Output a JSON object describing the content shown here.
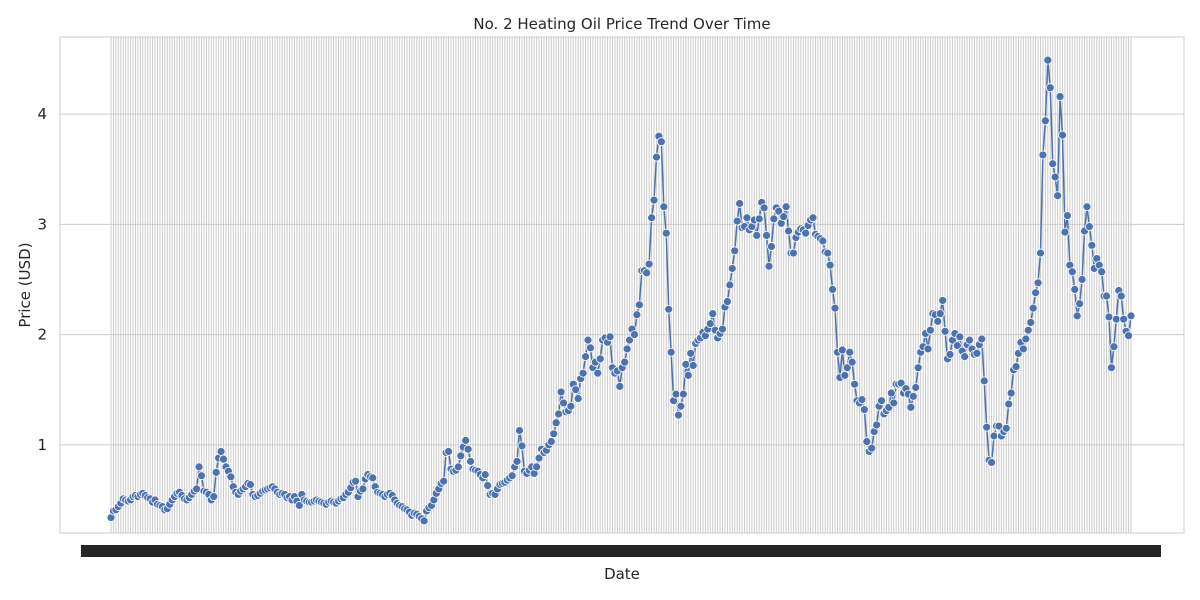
{
  "chart_data": {
    "type": "line",
    "title": "No. 2 Heating Oil Price Trend Over Time",
    "xlabel": "Date",
    "ylabel": "Price (USD)",
    "ylim": [
      0.2,
      4.7
    ],
    "yticks": [
      1,
      2,
      3,
      4
    ],
    "grid": true,
    "marker": "circle",
    "x_axis_note": "x-axis category labels are rendered overlapping and illegible",
    "series": [
      {
        "values": [
          0.34,
          0.4,
          0.41,
          0.44,
          0.47,
          0.51,
          0.5,
          0.49,
          0.5,
          0.53,
          0.54,
          0.53,
          0.55,
          0.56,
          0.54,
          0.52,
          0.51,
          0.48,
          0.5,
          0.46,
          0.45,
          0.44,
          0.41,
          0.42,
          0.46,
          0.5,
          0.53,
          0.56,
          0.57,
          0.54,
          0.51,
          0.5,
          0.52,
          0.55,
          0.58,
          0.6,
          0.8,
          0.72,
          0.58,
          0.57,
          0.55,
          0.5,
          0.53,
          0.75,
          0.88,
          0.94,
          0.87,
          0.8,
          0.76,
          0.71,
          0.62,
          0.57,
          0.55,
          0.58,
          0.6,
          0.62,
          0.65,
          0.64,
          0.55,
          0.53,
          0.54,
          0.56,
          0.58,
          0.59,
          0.6,
          0.61,
          0.62,
          0.6,
          0.57,
          0.55,
          0.56,
          0.55,
          0.52,
          0.53,
          0.5,
          0.53,
          0.49,
          0.45,
          0.55,
          0.5,
          0.49,
          0.48,
          0.48,
          0.49,
          0.5,
          0.49,
          0.48,
          0.47,
          0.46,
          0.48,
          0.49,
          0.48,
          0.47,
          0.49,
          0.51,
          0.52,
          0.55,
          0.57,
          0.61,
          0.66,
          0.67,
          0.53,
          0.58,
          0.6,
          0.69,
          0.73,
          0.71,
          0.7,
          0.62,
          0.57,
          0.56,
          0.55,
          0.53,
          0.55,
          0.56,
          0.54,
          0.5,
          0.47,
          0.45,
          0.44,
          0.42,
          0.41,
          0.39,
          0.36,
          0.38,
          0.37,
          0.35,
          0.33,
          0.31,
          0.4,
          0.43,
          0.45,
          0.5,
          0.56,
          0.6,
          0.65,
          0.67,
          0.93,
          0.94,
          0.78,
          0.76,
          0.77,
          0.8,
          0.9,
          0.98,
          1.04,
          0.96,
          0.85,
          0.78,
          0.77,
          0.76,
          0.73,
          0.7,
          0.73,
          0.63,
          0.55,
          0.56,
          0.55,
          0.6,
          0.64,
          0.65,
          0.66,
          0.68,
          0.7,
          0.72,
          0.8,
          0.85,
          1.13,
          0.99,
          0.76,
          0.74,
          0.77,
          0.8,
          0.74,
          0.8,
          0.88,
          0.96,
          0.93,
          0.95,
          1.0,
          1.03,
          1.1,
          1.2,
          1.28,
          1.48,
          1.38,
          1.3,
          1.31,
          1.35,
          1.55,
          1.5,
          1.42,
          1.6,
          1.65,
          1.8,
          1.95,
          1.88,
          1.7,
          1.75,
          1.65,
          1.78,
          1.95,
          1.97,
          1.93,
          1.98,
          1.7,
          1.65,
          1.67,
          1.53,
          1.7,
          1.75,
          1.87,
          1.95,
          2.05,
          2.0,
          2.18,
          2.27,
          2.58,
          2.58,
          2.56,
          2.64,
          3.06,
          3.22,
          3.61,
          3.8,
          3.75,
          3.16,
          2.92,
          2.23,
          1.84,
          1.4,
          1.46,
          1.27,
          1.35,
          1.46,
          1.73,
          1.63,
          1.83,
          1.72,
          1.92,
          1.95,
          1.97,
          2.02,
          1.99,
          2.05,
          2.1,
          2.19,
          2.04,
          1.97,
          2.01,
          2.05,
          2.25,
          2.3,
          2.45,
          2.6,
          2.76,
          3.03,
          3.19,
          2.97,
          2.98,
          3.06,
          2.95,
          2.98,
          3.04,
          2.9,
          3.05,
          3.2,
          3.15,
          2.9,
          2.62,
          2.8,
          3.05,
          3.15,
          3.12,
          3.01,
          3.07,
          3.16,
          2.94,
          2.74,
          2.74,
          2.88,
          2.93,
          2.96,
          2.95,
          2.92,
          2.99,
          3.04,
          3.06,
          2.91,
          2.89,
          2.87,
          2.85,
          2.75,
          2.74,
          2.63,
          2.41,
          2.24,
          1.84,
          1.61,
          1.86,
          1.63,
          1.7,
          1.84,
          1.75,
          1.55,
          1.4,
          1.38,
          1.41,
          1.32,
          1.03,
          0.94,
          0.97,
          1.12,
          1.18,
          1.35,
          1.4,
          1.28,
          1.31,
          1.34,
          1.47,
          1.38,
          1.55,
          1.55,
          1.56,
          1.47,
          1.51,
          1.46,
          1.34,
          1.44,
          1.52,
          1.7,
          1.84,
          1.89,
          2.01,
          1.87,
          2.04,
          2.19,
          2.18,
          2.12,
          2.19,
          2.31,
          2.03,
          1.78,
          1.82,
          1.95,
          2.01,
          1.9,
          1.98,
          1.85,
          1.8,
          1.91,
          1.95,
          1.87,
          1.82,
          1.83,
          1.91,
          1.96,
          1.58,
          1.16,
          0.86,
          0.84,
          1.08,
          1.17,
          1.17,
          1.08,
          1.12,
          1.15,
          1.37,
          1.47,
          1.68,
          1.71,
          1.83,
          1.93,
          1.87,
          1.96,
          2.04,
          2.11,
          2.24,
          2.38,
          2.47,
          2.74,
          3.63,
          3.94,
          4.49,
          4.24,
          3.55,
          3.43,
          3.26,
          4.16,
          3.81,
          2.93,
          3.08,
          2.63,
          2.57,
          2.41,
          2.17,
          2.28,
          2.5,
          2.94,
          3.16,
          2.98,
          2.81,
          2.6,
          2.69,
          2.63,
          2.57,
          2.35,
          2.35,
          2.16,
          1.7,
          1.89,
          2.14,
          2.4,
          2.35,
          2.14,
          2.03,
          1.99,
          2.17
        ]
      }
    ]
  }
}
